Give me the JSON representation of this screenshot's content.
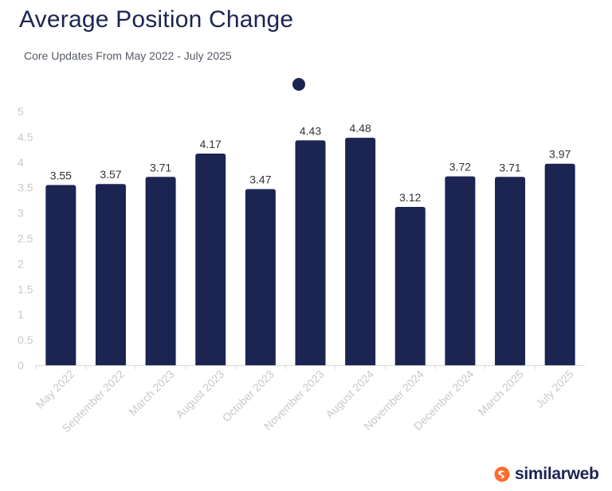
{
  "colors": {
    "bar": "#1c2452",
    "title": "#1c2452",
    "axis_text": "#c9c9c9",
    "label": "#333333",
    "brand_orange": "#ff6b2b"
  },
  "chart_data": {
    "type": "bar",
    "title": "Average Position Change",
    "subtitle": "Core Updates From May 2022 - July 2025",
    "categories": [
      "May 2022",
      "September 2022",
      "March 2023",
      "August 2023",
      "October 2023",
      "November 2023",
      "August 2024",
      "November 2024",
      "December 2024",
      "March 2025",
      "July 2025"
    ],
    "values": [
      3.55,
      3.57,
      3.71,
      4.17,
      3.47,
      4.43,
      4.48,
      3.12,
      3.72,
      3.71,
      3.97
    ],
    "ylim": [
      0,
      5
    ],
    "yticks": [
      "0",
      "0.5",
      "1",
      "1.5",
      "2",
      "2.5",
      "3",
      "3.5",
      "4",
      "4.5",
      "5"
    ],
    "xlabel": "",
    "ylabel": "",
    "grid": false,
    "legend_icon": "circle"
  },
  "brand": {
    "name": "similarweb",
    "logo_icon": "similarweb-logo-icon"
  }
}
